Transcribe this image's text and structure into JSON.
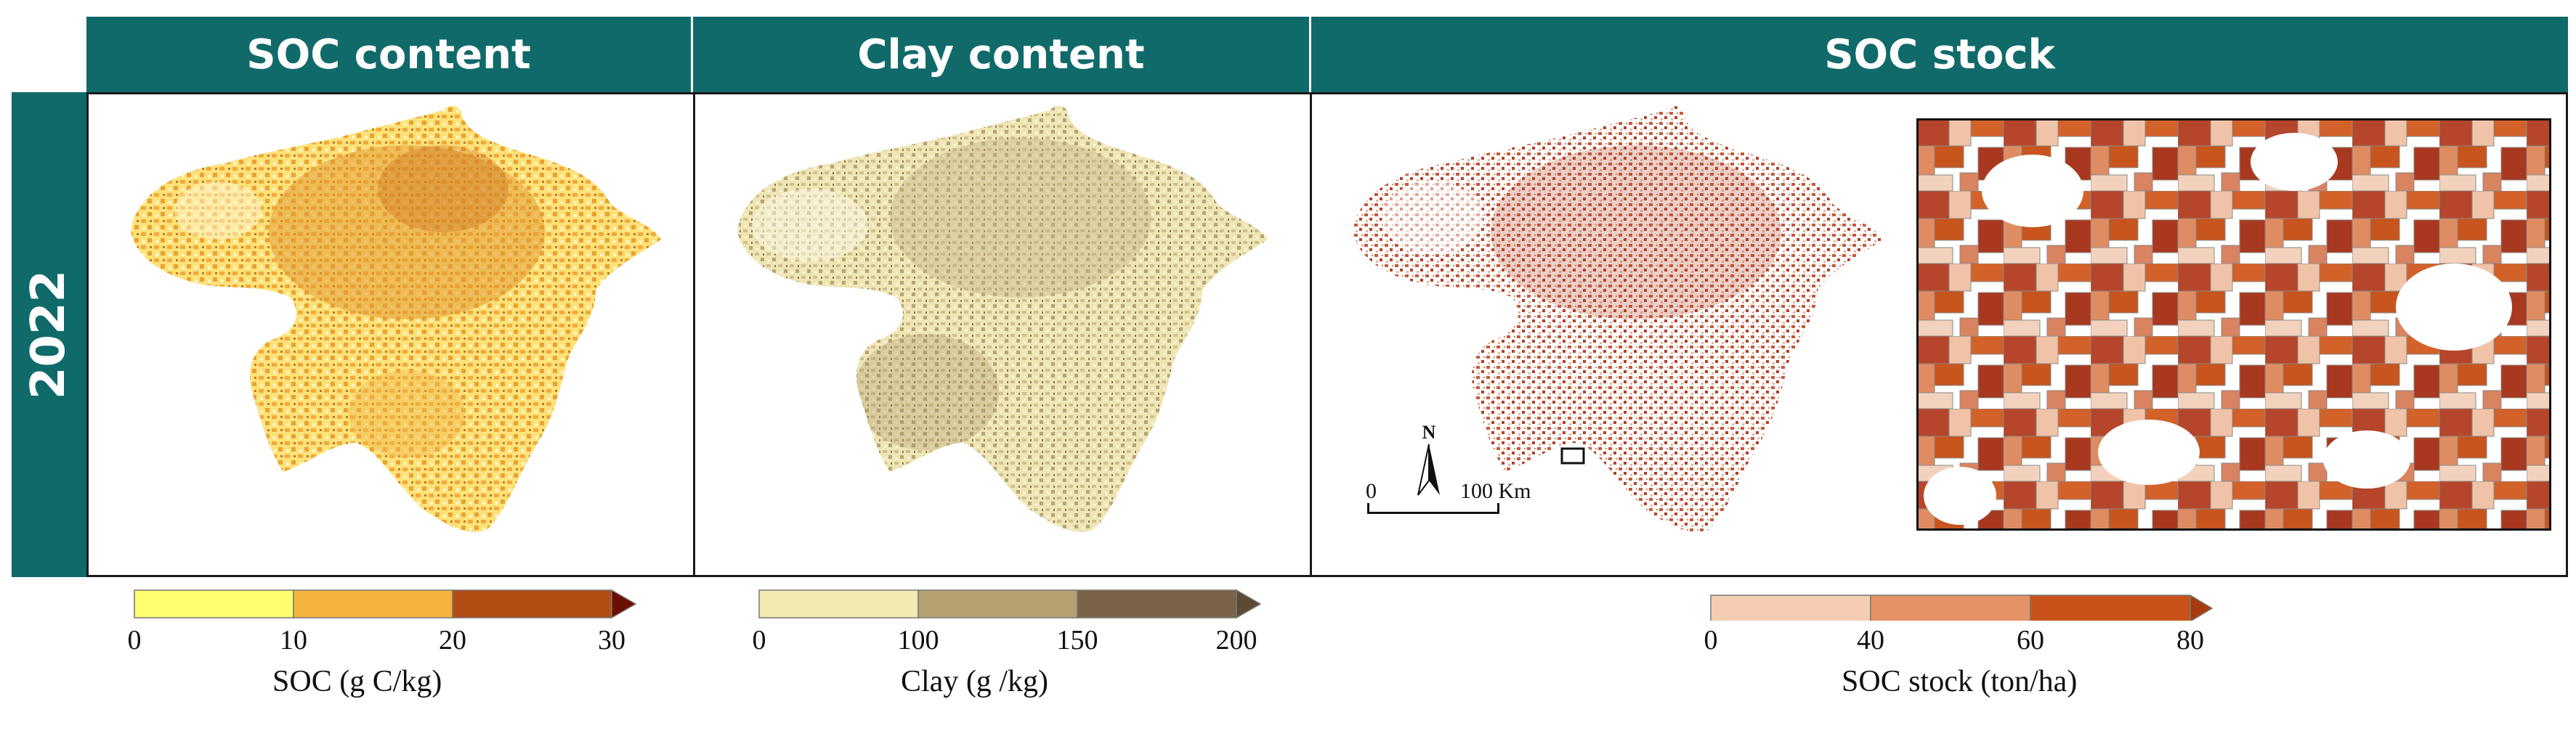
{
  "headers": {
    "soc_content": "SOC content",
    "clay_content": "Clay content",
    "soc_stock": "SOC stock"
  },
  "year": "2022",
  "scalebar": {
    "start": "0",
    "end": "100 Km"
  },
  "north_arrow": "N",
  "legends": {
    "soc": {
      "title": "SOC (g C/kg)",
      "ticks": [
        "0",
        "10",
        "20",
        "30"
      ],
      "colors": [
        "#ffff70",
        "#f5b43c",
        "#b34d14",
        "#6b0e06"
      ]
    },
    "clay": {
      "title": "Clay (g /kg)",
      "ticks": [
        "0",
        "100",
        "150",
        "200"
      ],
      "colors": [
        "#f2eab0",
        "#b5a272",
        "#7a6447",
        "#5c4a33"
      ]
    },
    "stock": {
      "title": "SOC stock (ton/ha)",
      "ticks": [
        "0",
        "40",
        "60",
        "80"
      ],
      "colors": [
        "#f5cdb2",
        "#e59266",
        "#c8521a",
        "#a83a10"
      ]
    }
  }
}
